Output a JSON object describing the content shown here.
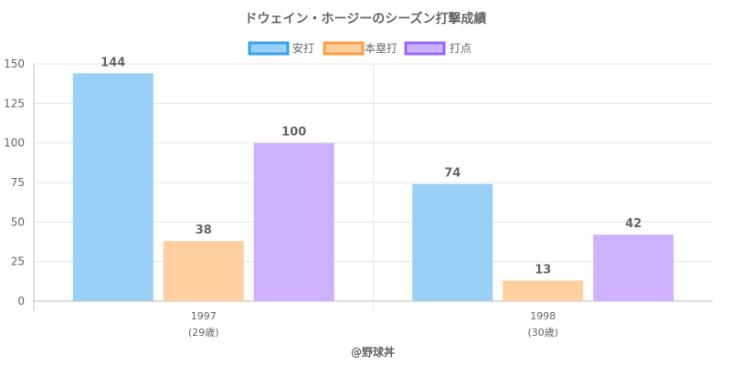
{
  "chart_data": {
    "type": "bar",
    "title": "ドウェイン・ホージーのシーズン打撃成績",
    "categories": [
      "1997",
      "1998"
    ],
    "category_sublabels": [
      "(29歳)",
      "(30歳)"
    ],
    "series": [
      {
        "name": "安打",
        "values": [
          144,
          74
        ],
        "fill": "#9ad0f5",
        "stroke": "#36a2eb"
      },
      {
        "name": "本塁打",
        "values": [
          38,
          13
        ],
        "fill": "#ffcf9f",
        "stroke": "#ff9f40"
      },
      {
        "name": "打点",
        "values": [
          100,
          42
        ],
        "fill": "#ccb2ff",
        "stroke": "#9966ff"
      }
    ],
    "ylim": [
      0,
      150
    ],
    "yticks": [
      0,
      25,
      50,
      75,
      100,
      125,
      150
    ],
    "grid": true,
    "legend": "top-center",
    "footer": "@野球丼"
  }
}
